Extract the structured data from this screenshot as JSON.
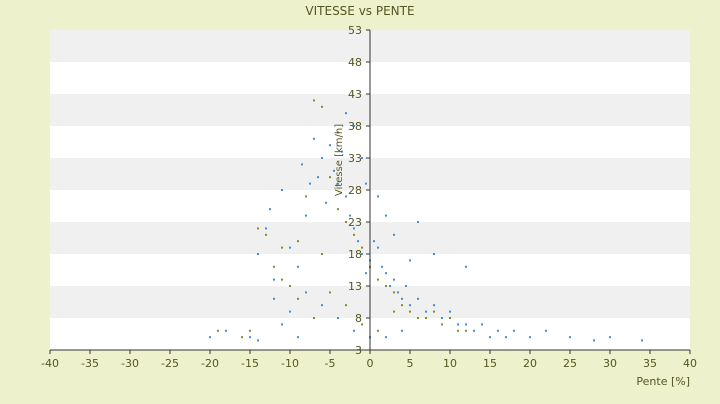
{
  "chart_data": {
    "type": "scatter",
    "title": "VITESSE vs PENTE",
    "xlabel": "Pente [%]",
    "ylabel": "Vitesse [km/h]",
    "xlim": [
      -40,
      40
    ],
    "ylim": [
      3,
      53
    ],
    "x_ticks": [
      "-40",
      "-35",
      "-30",
      "-25",
      "-20",
      "-15",
      "-10",
      "-5",
      "0",
      "5",
      "10",
      "15",
      "20",
      "25",
      "30",
      "35",
      "40"
    ],
    "y_ticks": [
      "3",
      "8",
      "13",
      "18",
      "23",
      "28",
      "33",
      "38",
      "43",
      "48",
      "53"
    ],
    "grid": "horizontal-bands",
    "legend": "none",
    "colors": {
      "background": "#eef2cc",
      "plot_band_light": "#ffffff",
      "plot_band_dark": "#f0f0f0",
      "axis": "#333333",
      "text": "#555522",
      "series_blue": "#3d8fd6",
      "series_olive": "#8a8a22"
    },
    "series": [
      {
        "color": "#3d8fd6",
        "points": [
          [
            -14,
            18
          ],
          [
            -13,
            22
          ],
          [
            -12.5,
            25
          ],
          [
            -12,
            14
          ],
          [
            -11,
            28
          ],
          [
            -10,
            19
          ],
          [
            -9,
            16
          ],
          [
            -8.5,
            32
          ],
          [
            -8,
            24
          ],
          [
            -7.5,
            29
          ],
          [
            -7,
            36
          ],
          [
            -6.5,
            30
          ],
          [
            -6,
            33
          ],
          [
            -5.5,
            26
          ],
          [
            -5,
            35
          ],
          [
            -4.5,
            31
          ],
          [
            -4,
            29
          ],
          [
            -3.5,
            34
          ],
          [
            -3,
            27
          ],
          [
            -2.5,
            24
          ],
          [
            -2,
            22
          ],
          [
            -1.5,
            20
          ],
          [
            -1,
            18
          ],
          [
            -0.5,
            15
          ],
          [
            0,
            17
          ],
          [
            0.5,
            20
          ],
          [
            1,
            19
          ],
          [
            1.5,
            16
          ],
          [
            2,
            15
          ],
          [
            2.5,
            13
          ],
          [
            3,
            14
          ],
          [
            3.5,
            12
          ],
          [
            4,
            11
          ],
          [
            4.5,
            13
          ],
          [
            5,
            10
          ],
          [
            6,
            11
          ],
          [
            7,
            9
          ],
          [
            8,
            10
          ],
          [
            9,
            8
          ],
          [
            10,
            9
          ],
          [
            11,
            7
          ],
          [
            12,
            7
          ],
          [
            13,
            6
          ],
          [
            14,
            7
          ],
          [
            15,
            5
          ],
          [
            16,
            6
          ],
          [
            17,
            5
          ],
          [
            18,
            6
          ],
          [
            20,
            5
          ],
          [
            22,
            6
          ],
          [
            25,
            5
          ],
          [
            28,
            4.5
          ],
          [
            30,
            5
          ],
          [
            34,
            4.5
          ],
          [
            -15,
            5
          ],
          [
            -18,
            6
          ],
          [
            -20,
            5
          ],
          [
            -14,
            4.5
          ],
          [
            -11,
            7
          ],
          [
            -9,
            5
          ],
          [
            6,
            23
          ],
          [
            8,
            18
          ],
          [
            12,
            16
          ],
          [
            -3,
            40
          ],
          [
            -2,
            38
          ],
          [
            -1,
            33
          ],
          [
            -0.5,
            29
          ],
          [
            1,
            27
          ],
          [
            2,
            24
          ],
          [
            3,
            21
          ],
          [
            -6,
            10
          ],
          [
            -4,
            8
          ],
          [
            -2,
            6
          ],
          [
            0,
            5
          ],
          [
            2,
            5
          ],
          [
            4,
            6
          ],
          [
            -8,
            12
          ],
          [
            -10,
            9
          ],
          [
            -12,
            11
          ],
          [
            5,
            17
          ]
        ]
      },
      {
        "color": "#8a8a22",
        "points": [
          [
            -14,
            22
          ],
          [
            -13,
            21
          ],
          [
            -12,
            16
          ],
          [
            -11,
            19
          ],
          [
            -10,
            13
          ],
          [
            -9,
            20
          ],
          [
            -8,
            27
          ],
          [
            -7,
            42
          ],
          [
            -6,
            41
          ],
          [
            -5,
            30
          ],
          [
            -4,
            25
          ],
          [
            -3,
            23
          ],
          [
            -2,
            21
          ],
          [
            -1,
            19
          ],
          [
            0,
            16
          ],
          [
            1,
            14
          ],
          [
            2,
            13
          ],
          [
            3,
            12
          ],
          [
            4,
            10
          ],
          [
            5,
            9
          ],
          [
            6,
            8
          ],
          [
            7,
            8
          ],
          [
            8,
            9
          ],
          [
            9,
            7
          ],
          [
            10,
            8
          ],
          [
            11,
            6
          ],
          [
            12,
            6
          ],
          [
            -15,
            6
          ],
          [
            -16,
            5
          ],
          [
            -19,
            6
          ],
          [
            -7,
            8
          ],
          [
            -5,
            12
          ],
          [
            -3,
            10
          ],
          [
            -1,
            7
          ],
          [
            1,
            6
          ],
          [
            3,
            9
          ],
          [
            -9,
            11
          ],
          [
            -11,
            14
          ],
          [
            -6,
            18
          ],
          [
            -4,
            37
          ]
        ]
      }
    ]
  }
}
